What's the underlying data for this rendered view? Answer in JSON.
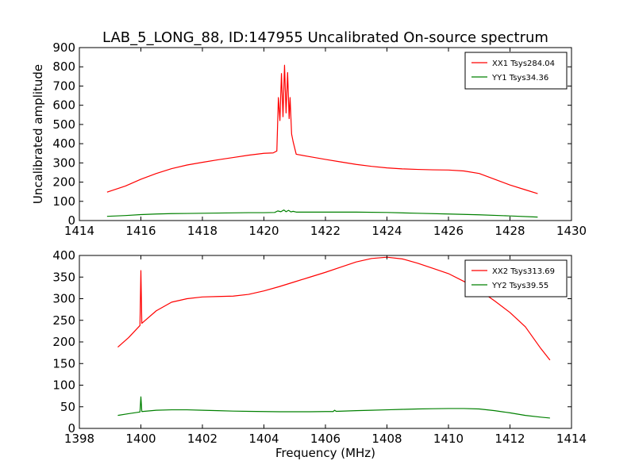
{
  "title": "LAB_5_LONG_88, ID:147955 Uncalibrated On-source spectrum",
  "chart_data": [
    {
      "type": "line",
      "title": "LAB_5_LONG_88, ID:147955 Uncalibrated On-source spectrum",
      "xlabel": "",
      "ylabel": "Uncalibrated amplitude",
      "xlim": [
        1414,
        1430
      ],
      "ylim": [
        0,
        900
      ],
      "xticks": [
        1414,
        1416,
        1418,
        1420,
        1422,
        1424,
        1426,
        1428,
        1430
      ],
      "yticks": [
        0,
        100,
        200,
        300,
        400,
        500,
        600,
        700,
        800,
        900
      ],
      "grid": false,
      "legend_position": "top-right",
      "series": [
        {
          "name": "XX1 Tsys284.04",
          "color": "#ff0000",
          "points": [
            [
              1414.9,
              148
            ],
            [
              1415.5,
              180
            ],
            [
              1416,
              215
            ],
            [
              1416.5,
              245
            ],
            [
              1417,
              270
            ],
            [
              1417.5,
              289
            ],
            [
              1418,
              303
            ],
            [
              1418.5,
              316
            ],
            [
              1419,
              328
            ],
            [
              1419.5,
              340
            ],
            [
              1420,
              350
            ],
            [
              1420.3,
              352
            ],
            [
              1420.42,
              362
            ],
            [
              1420.47,
              640
            ],
            [
              1420.52,
              520
            ],
            [
              1420.57,
              765
            ],
            [
              1420.62,
              540
            ],
            [
              1420.67,
              808
            ],
            [
              1420.72,
              560
            ],
            [
              1420.77,
              770
            ],
            [
              1420.82,
              530
            ],
            [
              1420.85,
              640
            ],
            [
              1420.9,
              450
            ],
            [
              1420.95,
              410
            ],
            [
              1421.05,
              345
            ],
            [
              1421.5,
              332
            ],
            [
              1422,
              318
            ],
            [
              1422.5,
              305
            ],
            [
              1423,
              292
            ],
            [
              1423.5,
              282
            ],
            [
              1424,
              274
            ],
            [
              1424.5,
              269
            ],
            [
              1425,
              266
            ],
            [
              1425.5,
              264
            ],
            [
              1426,
              263
            ],
            [
              1426.5,
              258
            ],
            [
              1427,
              245
            ],
            [
              1427.5,
              215
            ],
            [
              1428,
              185
            ],
            [
              1428.5,
              160
            ],
            [
              1428.9,
              140
            ]
          ]
        },
        {
          "name": "YY1 Tsys34.36",
          "color": "#008000",
          "points": [
            [
              1414.9,
              22
            ],
            [
              1415.5,
              26
            ],
            [
              1416,
              31
            ],
            [
              1416.5,
              34
            ],
            [
              1417,
              36
            ],
            [
              1417.5,
              37
            ],
            [
              1418,
              38
            ],
            [
              1418.5,
              39
            ],
            [
              1419,
              40
            ],
            [
              1419.5,
              41
            ],
            [
              1420,
              41
            ],
            [
              1420.35,
              42
            ],
            [
              1420.45,
              50
            ],
            [
              1420.55,
              46
            ],
            [
              1420.65,
              55
            ],
            [
              1420.72,
              46
            ],
            [
              1420.8,
              53
            ],
            [
              1420.88,
              45
            ],
            [
              1420.95,
              48
            ],
            [
              1421.05,
              44
            ],
            [
              1421.5,
              44
            ],
            [
              1422,
              44
            ],
            [
              1423,
              44
            ],
            [
              1424,
              42
            ],
            [
              1425,
              38
            ],
            [
              1426,
              34
            ],
            [
              1427,
              30
            ],
            [
              1428,
              24
            ],
            [
              1428.9,
              18
            ]
          ]
        }
      ]
    },
    {
      "type": "line",
      "title": "",
      "xlabel": "Frequency (MHz)",
      "ylabel": "",
      "xlim": [
        1398,
        1414
      ],
      "ylim": [
        0,
        400
      ],
      "xticks": [
        1398,
        1400,
        1402,
        1404,
        1406,
        1408,
        1410,
        1412,
        1414
      ],
      "yticks": [
        0,
        50,
        100,
        150,
        200,
        250,
        300,
        350,
        400
      ],
      "grid": false,
      "legend_position": "top-right",
      "series": [
        {
          "name": "XX2 Tsys313.69",
          "color": "#ff0000",
          "points": [
            [
              1399.25,
              188
            ],
            [
              1399.6,
              210
            ],
            [
              1399.97,
              238
            ],
            [
              1400,
              365
            ],
            [
              1400.03,
              243
            ],
            [
              1400.5,
              272
            ],
            [
              1401,
              292
            ],
            [
              1401.5,
              300
            ],
            [
              1402,
              304
            ],
            [
              1402.5,
              305
            ],
            [
              1403,
              306
            ],
            [
              1403.5,
              310
            ],
            [
              1404,
              318
            ],
            [
              1404.5,
              328
            ],
            [
              1405,
              339
            ],
            [
              1405.5,
              350
            ],
            [
              1406,
              361
            ],
            [
              1406.5,
              373
            ],
            [
              1407,
              385
            ],
            [
              1407.5,
              393
            ],
            [
              1408,
              396
            ],
            [
              1408.5,
              392
            ],
            [
              1409,
              382
            ],
            [
              1409.5,
              370
            ],
            [
              1410,
              358
            ],
            [
              1410.5,
              340
            ],
            [
              1411,
              320
            ],
            [
              1411.5,
              295
            ],
            [
              1412,
              268
            ],
            [
              1412.5,
              235
            ],
            [
              1413,
              185
            ],
            [
              1413.3,
              158
            ]
          ]
        },
        {
          "name": "YY2 Tsys39.55",
          "color": "#008000",
          "points": [
            [
              1399.25,
              30
            ],
            [
              1399.6,
              34
            ],
            [
              1399.97,
              38
            ],
            [
              1400,
              73
            ],
            [
              1400.03,
              39
            ],
            [
              1400.5,
              42
            ],
            [
              1401,
              43
            ],
            [
              1401.5,
              43
            ],
            [
              1402,
              42
            ],
            [
              1402.5,
              41
            ],
            [
              1403,
              40
            ],
            [
              1403.5,
              39.5
            ],
            [
              1404,
              39
            ],
            [
              1404.5,
              38.5
            ],
            [
              1405,
              38.5
            ],
            [
              1405.5,
              38.5
            ],
            [
              1406,
              39
            ],
            [
              1406.25,
              39
            ],
            [
              1406.3,
              42
            ],
            [
              1406.35,
              39.5
            ],
            [
              1407,
              41
            ],
            [
              1407.5,
              42
            ],
            [
              1408,
              43
            ],
            [
              1408.5,
              44
            ],
            [
              1409,
              45
            ],
            [
              1409.5,
              45.5
            ],
            [
              1410,
              46
            ],
            [
              1410.5,
              46
            ],
            [
              1411,
              45
            ],
            [
              1411.5,
              41
            ],
            [
              1412,
              36
            ],
            [
              1412.5,
              30
            ],
            [
              1413,
              26
            ],
            [
              1413.3,
              24
            ]
          ]
        }
      ]
    }
  ]
}
